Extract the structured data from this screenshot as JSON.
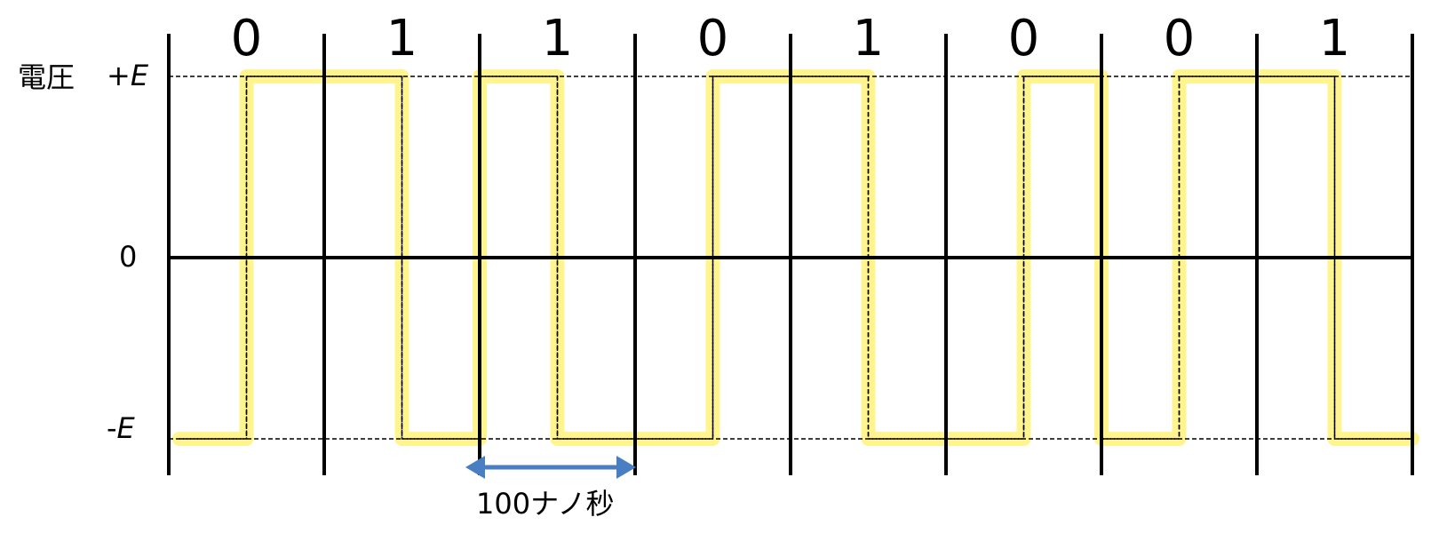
{
  "ylabel": "電圧",
  "levels": {
    "high": {
      "sign": "+",
      "symbol": "E"
    },
    "zero": "0",
    "low": {
      "sign": "-",
      "symbol": "E"
    }
  },
  "bits": [
    "0",
    "1",
    "1",
    "0",
    "1",
    "0",
    "0",
    "1"
  ],
  "period_label": "100ナノ秒",
  "colors": {
    "grid": "#000000",
    "highlight": "#fff27a",
    "arrow": "#4a7ec2"
  },
  "chart_data": {
    "type": "line",
    "bits": [
      "0",
      "1",
      "1",
      "0",
      "1",
      "0",
      "0",
      "1"
    ],
    "ylabel": "電圧",
    "y_ticks": [
      "+E",
      "0",
      "-E"
    ],
    "signal": [
      {
        "bit": "0",
        "first_half": "-E",
        "second_half": "+E"
      },
      {
        "bit": "1",
        "first_half": "+E",
        "second_half": "-E"
      },
      {
        "bit": "1",
        "first_half": "+E",
        "second_half": "-E"
      },
      {
        "bit": "0",
        "first_half": "-E",
        "second_half": "+E"
      },
      {
        "bit": "1",
        "first_half": "+E",
        "second_half": "-E"
      },
      {
        "bit": "0",
        "first_half": "-E",
        "second_half": "+E"
      },
      {
        "bit": "0",
        "first_half": "-E",
        "second_half": "+E"
      },
      {
        "bit": "1",
        "first_half": "+E",
        "second_half": "-E"
      }
    ],
    "bit_period": "100ナノ秒"
  }
}
